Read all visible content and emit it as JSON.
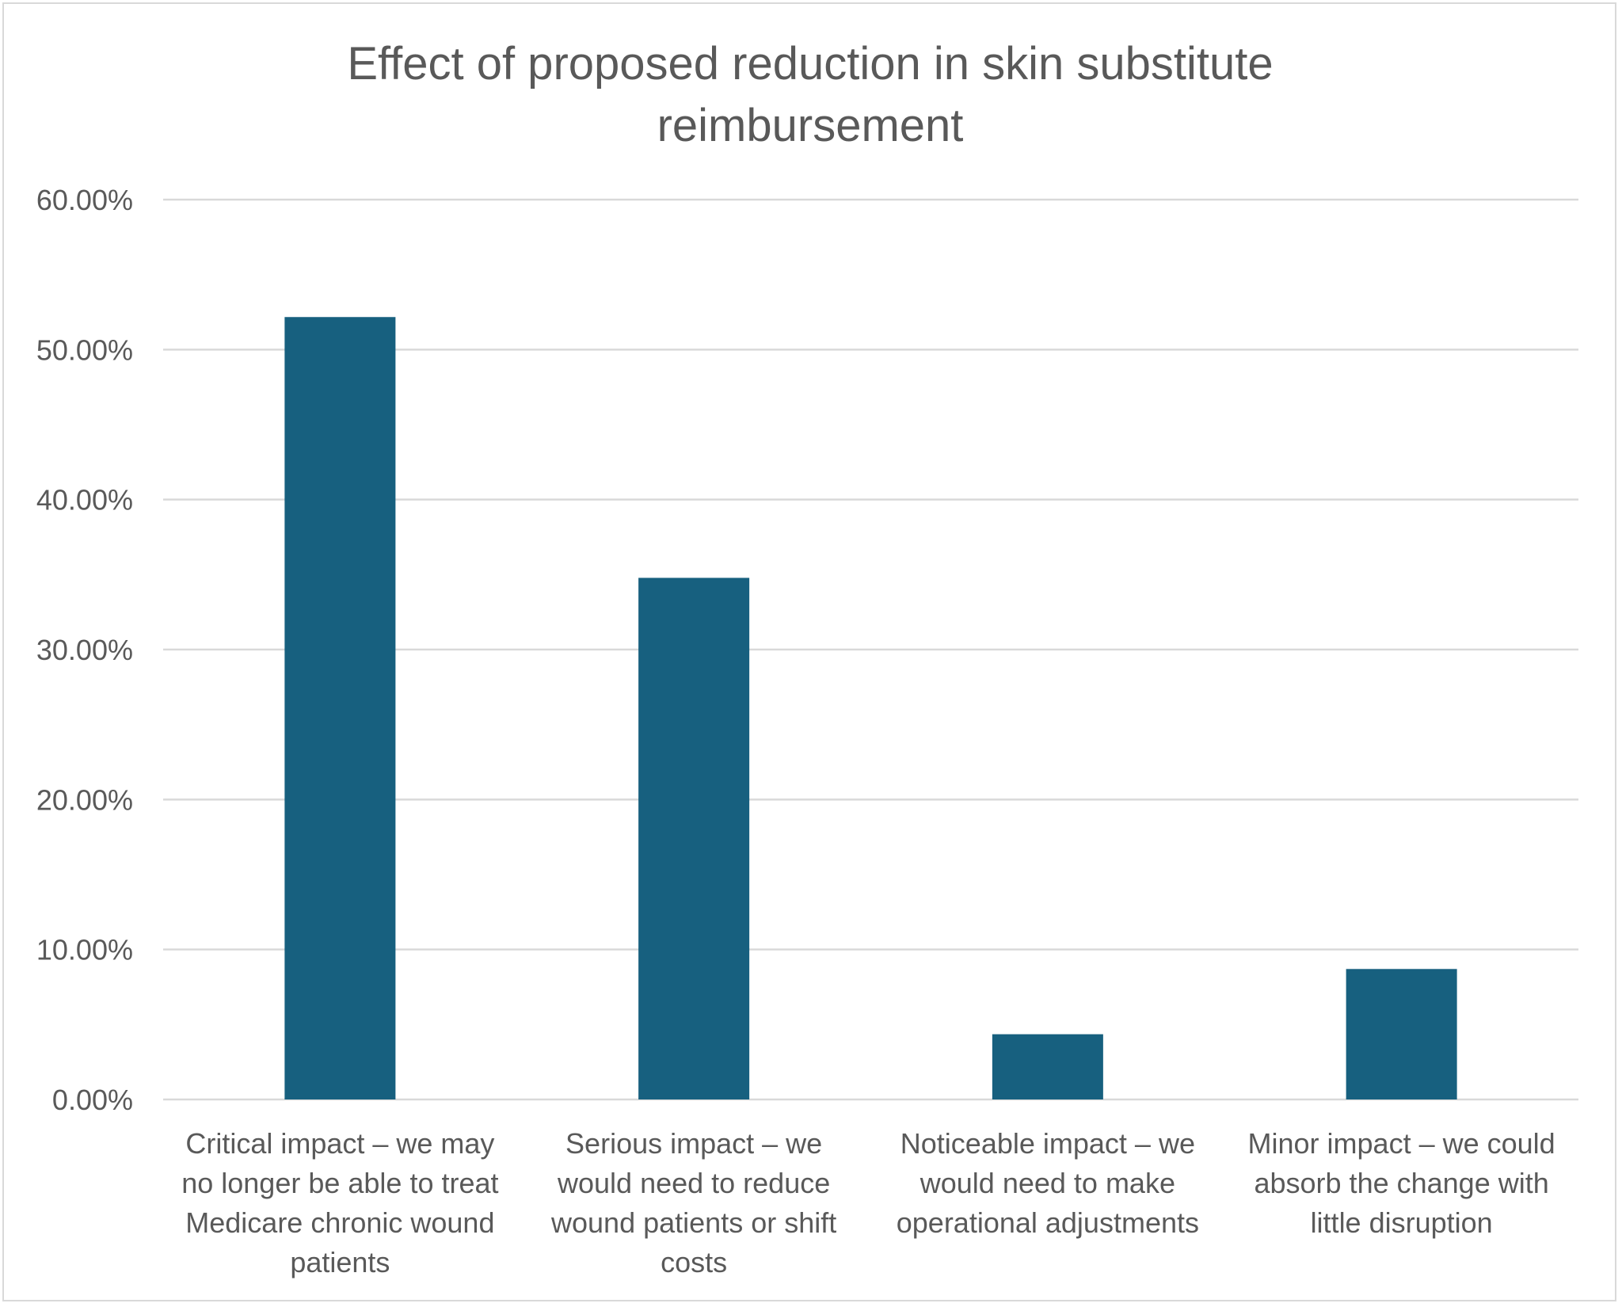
{
  "chart_data": {
    "type": "bar",
    "title_lines": [
      "Effect of proposed reduction in skin substitute",
      "reimbursement"
    ],
    "categories": [
      [
        "Critical impact – we may",
        "no longer be able to treat",
        "Medicare chronic wound",
        "patients"
      ],
      [
        "Serious impact – we",
        "would need to reduce",
        "wound patients or shift",
        "costs"
      ],
      [
        "Noticeable impact – we",
        "would need to make",
        "operational adjustments"
      ],
      [
        "Minor impact – we could",
        "absorb the change with",
        "little disruption"
      ]
    ],
    "values": [
      52.17,
      34.78,
      4.35,
      8.7
    ],
    "ylim": [
      0,
      60
    ],
    "yticks": [
      0,
      10,
      20,
      30,
      40,
      50,
      60
    ],
    "ytick_labels": [
      "0.00%",
      "10.00%",
      "20.00%",
      "30.00%",
      "40.00%",
      "50.00%",
      "60.00%"
    ],
    "xlabel": "",
    "ylabel": "",
    "grid": true,
    "legend": "none",
    "bar_color": "#17607f"
  }
}
